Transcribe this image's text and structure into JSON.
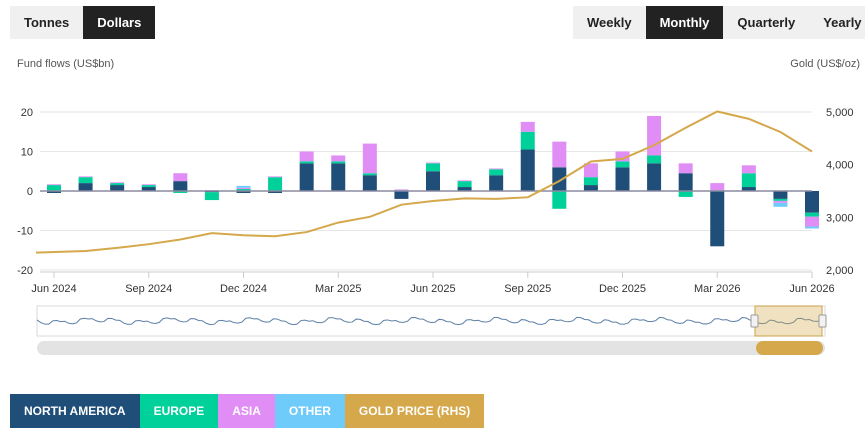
{
  "units": {
    "options": [
      {
        "label": "Tonnes",
        "active": false
      },
      {
        "label": "Dollars",
        "active": true
      }
    ]
  },
  "periods": {
    "options": [
      {
        "label": "Weekly",
        "active": false
      },
      {
        "label": "Monthly",
        "active": true
      },
      {
        "label": "Quarterly",
        "active": false
      },
      {
        "label": "Yearly",
        "active": false
      }
    ]
  },
  "legend": [
    {
      "label": "NORTH AMERICA",
      "color": "#1f4e79",
      "text_color": "#ffffff"
    },
    {
      "label": "EUROPE",
      "color": "#00d19a",
      "text_color": "#ffffff"
    },
    {
      "label": "ASIA",
      "color": "#e08ef5",
      "text_color": "#ffffff"
    },
    {
      "label": "OTHER",
      "color": "#6ecbfa",
      "text_color": "#ffffff"
    },
    {
      "label": "GOLD PRICE (RHS)",
      "color": "#d4a84b",
      "text_color": "#ffffff"
    }
  ],
  "chart_data": {
    "type": "bar",
    "ylabel": "Fund flows (US$bn)",
    "y2label": "Gold (US$/oz)",
    "ylim": [
      -20,
      20
    ],
    "y2lim": [
      2000,
      5000
    ],
    "yticks": [
      20,
      10,
      0,
      -10,
      -20
    ],
    "y2ticks": [
      "5,000",
      "4,000",
      "3,000",
      "2,000"
    ],
    "x_tick_labels": [
      "Jun 2024",
      "Sep 2024",
      "Dec 2024",
      "Mar 2025",
      "Jun 2025",
      "Sep 2025",
      "Dec 2025",
      "Mar 2026",
      "Jun 2026"
    ],
    "categories": [
      "Jun 2024",
      "Jul 2024",
      "Aug 2024",
      "Sep 2024",
      "Oct 2024",
      "Nov 2024",
      "Dec 2024",
      "Jan 2025",
      "Feb 2025",
      "Mar 2025",
      "Apr 2025",
      "May 2025",
      "Jun 2025",
      "Jul 2025",
      "Aug 2025",
      "Sep 2025",
      "Oct 2025",
      "Nov 2025",
      "Dec 2025",
      "Jan 2026",
      "Feb 2026",
      "Mar 2026",
      "Apr 2026",
      "May 2026",
      "Jun 2026"
    ],
    "series": [
      {
        "name": "NORTH AMERICA",
        "color": "#1f4e79",
        "values": [
          -0.5,
          2.0,
          1.5,
          1.0,
          2.5,
          -0.3,
          -0.5,
          -0.5,
          7.0,
          7.0,
          4.0,
          -2.0,
          5.0,
          1.0,
          4.0,
          10.5,
          6.0,
          1.5,
          6.0,
          7.0,
          4.5,
          -14.0,
          1.0,
          -2.0,
          -5.5
        ]
      },
      {
        "name": "EUROPE",
        "color": "#00d19a",
        "values": [
          1.5,
          1.5,
          0.5,
          0.5,
          -0.5,
          -2.0,
          0.5,
          3.5,
          0.5,
          0.5,
          0.5,
          0.2,
          2.0,
          1.5,
          1.5,
          4.5,
          -4.5,
          2.0,
          1.5,
          2.0,
          -1.5,
          0.2,
          3.5,
          -0.5,
          -1.0
        ]
      },
      {
        "name": "ASIA",
        "color": "#e08ef5",
        "values": [
          0.2,
          0.2,
          0.2,
          0.2,
          2.0,
          0.2,
          0.3,
          0.2,
          2.5,
          1.5,
          7.5,
          0.2,
          0.2,
          0.2,
          0.2,
          2.5,
          6.5,
          3.5,
          2.5,
          10.0,
          2.5,
          1.8,
          2.0,
          -0.5,
          -2.5
        ]
      },
      {
        "name": "OTHER",
        "color": "#6ecbfa",
        "values": [
          0,
          0,
          0,
          0,
          0,
          0,
          0.5,
          0,
          0,
          0,
          0,
          0,
          0,
          0,
          0,
          0,
          0,
          0,
          0,
          0,
          0,
          0,
          0,
          -1.0,
          -0.5
        ]
      }
    ],
    "gold_price": {
      "name": "GOLD PRICE (RHS)",
      "color": "#d4a84b",
      "values": [
        2330,
        2360,
        2420,
        2490,
        2580,
        2700,
        2660,
        2640,
        2720,
        2900,
        3010,
        3240,
        3310,
        3360,
        3350,
        3380,
        3690,
        4060,
        4110,
        4370,
        4700,
        5010,
        4870,
        4620,
        4250
      ]
    },
    "grid": "horizontal",
    "legend_position": "bottom"
  }
}
